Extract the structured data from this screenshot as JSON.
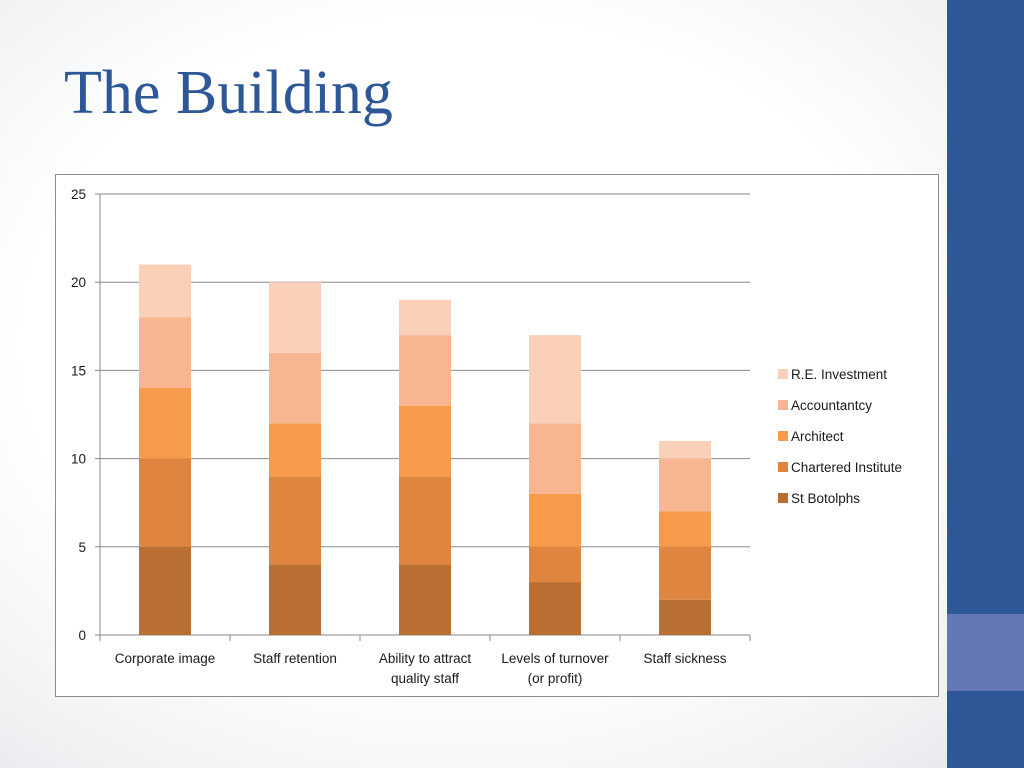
{
  "slide": {
    "title": "The Building"
  },
  "colors": {
    "sidebar": "#2e5797",
    "sidebar_accent": "#6378b4",
    "title": "#2e5797"
  },
  "chart_data": {
    "type": "bar",
    "stacked": true,
    "categories": [
      [
        "Corporate image"
      ],
      [
        "Staff retention"
      ],
      [
        "Ability to attract",
        "quality staff"
      ],
      [
        "Levels of turnover",
        "(or profit)"
      ],
      [
        "Staff sickness"
      ]
    ],
    "series": [
      {
        "name": "St Botolphs",
        "color": "#b96e32",
        "values": [
          5,
          4,
          4,
          3,
          2
        ]
      },
      {
        "name": "Chartered Institute",
        "color": "#de8540",
        "values": [
          5,
          5,
          5,
          2,
          3
        ]
      },
      {
        "name": "Architect",
        "color": "#f79a4a",
        "values": [
          4,
          3,
          4,
          3,
          2
        ]
      },
      {
        "name": "Accountantcy",
        "color": "#f8b591",
        "values": [
          4,
          4,
          4,
          4,
          3
        ]
      },
      {
        "name": "R.E. Investment",
        "color": "#fad0b9",
        "values": [
          3,
          4,
          2,
          5,
          1
        ]
      }
    ],
    "ylim": [
      0,
      25
    ],
    "yticks": [
      0,
      5,
      10,
      15,
      20,
      25
    ],
    "grid": true,
    "legend_position": "right",
    "legend_order": "reverse"
  }
}
